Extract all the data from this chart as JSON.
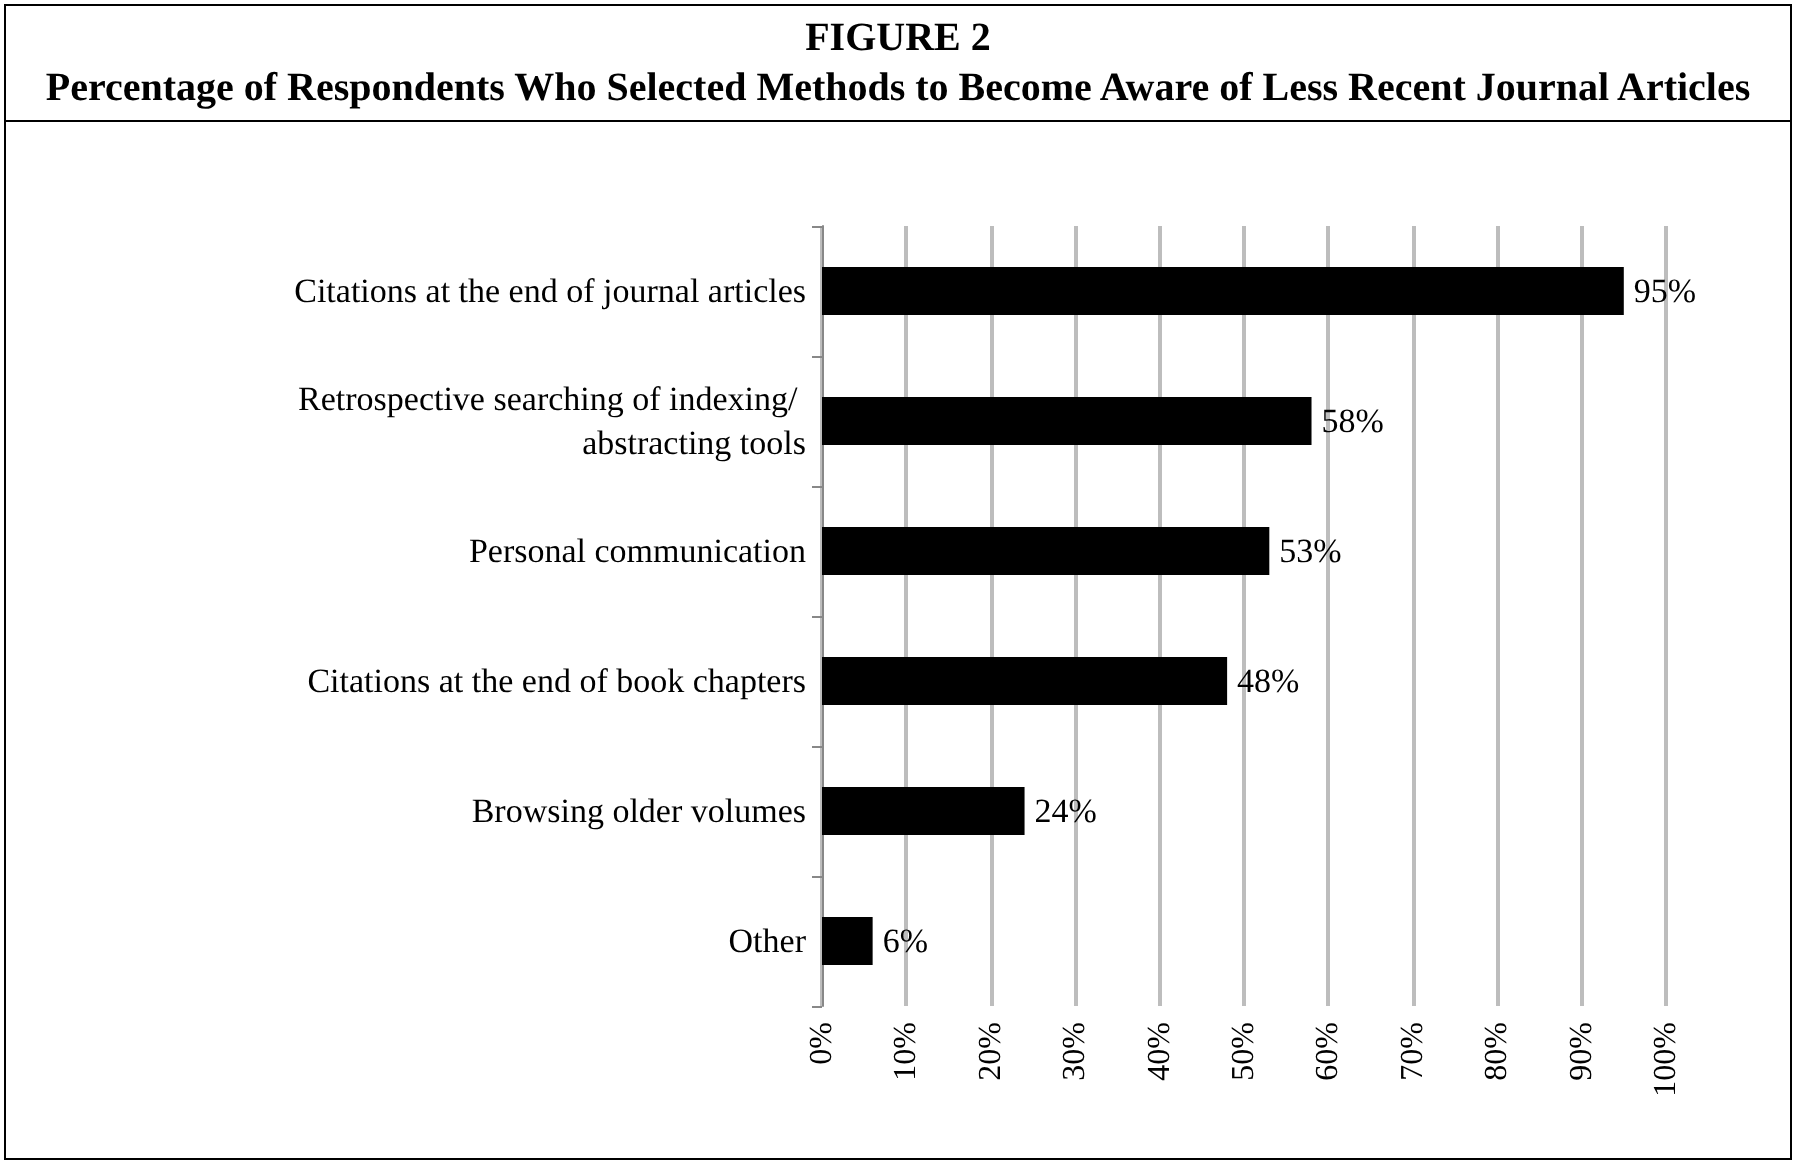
{
  "chart_data": {
    "type": "bar",
    "orientation": "horizontal",
    "title": "FIGURE 2",
    "subtitle": "Percentage of Respondents Who Selected Methods to Become Aware of Less Recent Journal Articles",
    "categories": [
      "Citations at the end of journal articles",
      "Retrospective searching of indexing/ abstracting tools",
      "Personal communication",
      "Citations at the end of book chapters",
      "Browsing older volumes",
      "Other"
    ],
    "values": [
      95,
      58,
      53,
      48,
      24,
      6
    ],
    "value_labels": [
      "95%",
      "58%",
      "53%",
      "48%",
      "24%",
      "6%"
    ],
    "color": "#000000",
    "xlim": [
      0,
      100
    ],
    "xticks": [
      {
        "value": 0,
        "label": "0%"
      },
      {
        "value": 10,
        "label": "10%"
      },
      {
        "value": 20,
        "label": "20%"
      },
      {
        "value": 30,
        "label": "30%"
      },
      {
        "value": 40,
        "label": "40%"
      },
      {
        "value": 50,
        "label": "50%"
      },
      {
        "value": 60,
        "label": "60%"
      },
      {
        "value": 70,
        "label": "70%"
      },
      {
        "value": 80,
        "label": "80%"
      },
      {
        "value": 90,
        "label": "90%"
      },
      {
        "value": 100,
        "label": "100%"
      }
    ],
    "grid": "x"
  }
}
